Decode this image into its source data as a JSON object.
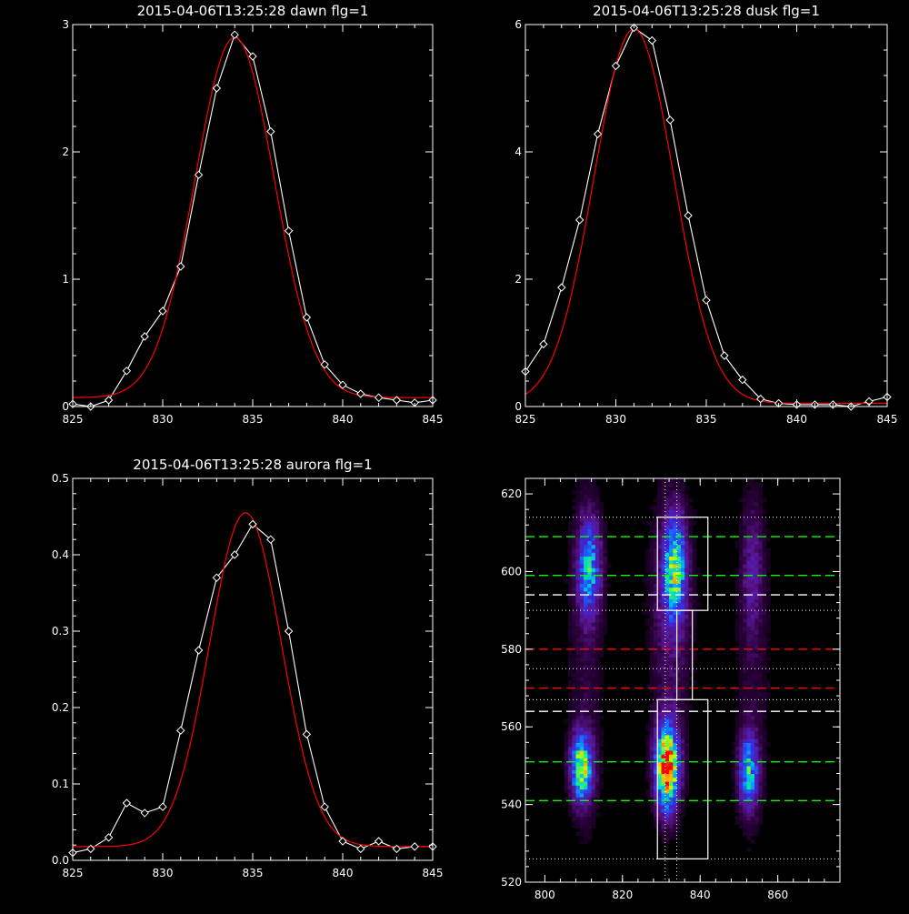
{
  "colors": {
    "background": "#000000",
    "axes": "#ffffff",
    "data": "#ffffff",
    "fit": "#ff0000",
    "green": "#00ff00",
    "red": "#ff0000",
    "white": "#ffffff"
  },
  "chart_data": [
    {
      "type": "line",
      "title": "2015-04-06T13:25:28 dawn flg=1",
      "xlabel": "",
      "ylabel": "",
      "xlim": [
        825,
        845
      ],
      "ylim": [
        0,
        3
      ],
      "xticks": [
        "825",
        "830",
        "835",
        "840",
        "845"
      ],
      "yticks": [
        "0",
        "1",
        "2",
        "3"
      ],
      "series": [
        {
          "role": "data",
          "marker": "diamond",
          "x": [
            825,
            826,
            827,
            828,
            829,
            830,
            831,
            832,
            833,
            834,
            835,
            836,
            837,
            838,
            839,
            840,
            841,
            842,
            843,
            844,
            845
          ],
          "y": [
            0.02,
            0.0,
            0.05,
            0.28,
            0.55,
            0.75,
            1.1,
            1.82,
            2.5,
            2.92,
            2.75,
            2.16,
            1.38,
            0.7,
            0.33,
            0.17,
            0.1,
            0.07,
            0.05,
            0.03,
            0.05
          ]
        },
        {
          "role": "fit",
          "amp": 2.83,
          "center": 834.0,
          "sigma": 2.2,
          "offset": 0.07
        }
      ]
    },
    {
      "type": "line",
      "title": "2015-04-06T13:25:28 dusk flg=1",
      "xlabel": "",
      "ylabel": "",
      "xlim": [
        825,
        845
      ],
      "ylim": [
        0,
        6
      ],
      "xticks": [
        "825",
        "830",
        "835",
        "840",
        "845"
      ],
      "yticks": [
        "0",
        "2",
        "4",
        "6"
      ],
      "series": [
        {
          "role": "data",
          "marker": "diamond",
          "x": [
            825,
            826,
            827,
            828,
            829,
            830,
            831,
            832,
            833,
            834,
            835,
            836,
            837,
            838,
            839,
            840,
            841,
            842,
            843,
            844,
            845
          ],
          "y": [
            0.55,
            0.98,
            1.87,
            2.93,
            4.28,
            5.35,
            5.95,
            5.75,
            4.5,
            3.0,
            1.67,
            0.8,
            0.42,
            0.12,
            0.05,
            0.03,
            0.03,
            0.03,
            0.0,
            0.08,
            0.15
          ]
        },
        {
          "role": "fit",
          "amp": 5.88,
          "center": 831.0,
          "sigma": 2.2,
          "offset": 0.05
        }
      ]
    },
    {
      "type": "line",
      "title": "2015-04-06T13:25:28 aurora flg=1",
      "xlabel": "",
      "ylabel": "",
      "xlim": [
        825,
        845
      ],
      "ylim": [
        0,
        0.5
      ],
      "xticks": [
        "825",
        "830",
        "835",
        "840",
        "845"
      ],
      "yticks": [
        "0.0",
        "0.1",
        "0.2",
        "0.3",
        "0.4",
        "0.5"
      ],
      "series": [
        {
          "role": "data",
          "marker": "diamond",
          "x": [
            825,
            826,
            827,
            828,
            829,
            830,
            831,
            832,
            833,
            834,
            835,
            836,
            837,
            838,
            839,
            840,
            841,
            842,
            843,
            844,
            845
          ],
          "y": [
            0.01,
            0.015,
            0.03,
            0.075,
            0.062,
            0.07,
            0.17,
            0.275,
            0.37,
            0.4,
            0.44,
            0.42,
            0.3,
            0.165,
            0.07,
            0.025,
            0.015,
            0.025,
            0.015,
            0.018,
            0.018
          ]
        },
        {
          "role": "fit",
          "amp": 0.437,
          "center": 834.6,
          "sigma": 2.0,
          "offset": 0.018
        }
      ]
    },
    {
      "type": "heatmap",
      "title": "",
      "xlabel": "",
      "ylabel": "",
      "xlim": [
        795,
        876
      ],
      "ylim": [
        520,
        624
      ],
      "xticks": [
        "800",
        "820",
        "840",
        "860"
      ],
      "yticks": [
        "520",
        "540",
        "560",
        "580",
        "600",
        "620"
      ],
      "colormap": "rainbow",
      "blobs": [
        {
          "x": 811,
          "y": 601,
          "sx": 2.2,
          "sy": 9,
          "amp": 0.5
        },
        {
          "x": 809,
          "y": 549,
          "sx": 2.0,
          "sy": 6,
          "amp": 0.72
        },
        {
          "x": 833,
          "y": 601,
          "sx": 2.0,
          "sy": 9,
          "amp": 0.58
        },
        {
          "x": 831,
          "y": 549,
          "sx": 2.2,
          "sy": 8,
          "amp": 1.0
        },
        {
          "x": 832,
          "y": 590,
          "sx": 4.0,
          "sy": 22,
          "amp": 0.22
        },
        {
          "x": 852,
          "y": 548,
          "sx": 1.8,
          "sy": 7,
          "amp": 0.55
        },
        {
          "x": 853,
          "y": 600,
          "sx": 2.0,
          "sy": 12,
          "amp": 0.2
        },
        {
          "x": 810,
          "y": 575,
          "sx": 3.5,
          "sy": 35,
          "amp": 0.12
        },
        {
          "x": 853,
          "y": 575,
          "sx": 3.5,
          "sy": 35,
          "amp": 0.1
        }
      ],
      "hlines": [
        {
          "y": 609,
          "color": "green",
          "style": "dashed"
        },
        {
          "y": 599,
          "color": "green",
          "style": "dashed"
        },
        {
          "y": 594,
          "color": "white",
          "style": "dashed"
        },
        {
          "y": 580,
          "color": "red",
          "style": "dashed"
        },
        {
          "y": 570,
          "color": "red",
          "style": "dashed"
        },
        {
          "y": 564,
          "color": "white",
          "style": "dashed"
        },
        {
          "y": 551,
          "color": "green",
          "style": "dashed"
        },
        {
          "y": 541,
          "color": "green",
          "style": "dashed"
        },
        {
          "y": 614,
          "color": "white",
          "style": "dotted"
        },
        {
          "y": 590,
          "color": "white",
          "style": "dotted"
        },
        {
          "y": 575,
          "color": "white",
          "style": "dotted"
        },
        {
          "y": 567,
          "color": "white",
          "style": "dotted"
        },
        {
          "y": 526,
          "color": "white",
          "style": "dotted"
        }
      ],
      "vlines": [
        {
          "x": 831,
          "color": "white",
          "style": "dotted"
        },
        {
          "x": 834,
          "color": "white",
          "style": "dotted"
        }
      ],
      "boxes": [
        {
          "x0": 829,
          "x1": 842,
          "y0": 590,
          "y1": 614
        },
        {
          "x0": 829,
          "x1": 842,
          "y0": 526,
          "y1": 567
        },
        {
          "x0": 834,
          "x1": 838,
          "y0": 567,
          "y1": 590
        }
      ]
    }
  ]
}
